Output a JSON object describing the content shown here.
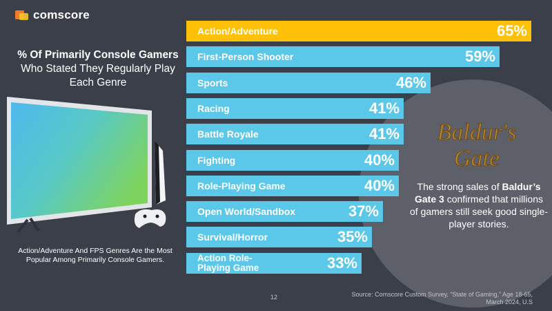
{
  "brand": {
    "name": "comscore"
  },
  "title": {
    "bold": "% Of Primarily Console Gamers",
    "rest": " Who Stated They Regularly Play Each Genre"
  },
  "footnote": "Action/Adventure And FPS Genres Are the Most Popular Among Primarily Console Gamers.",
  "callout": {
    "logo_line1": "Baldur's",
    "logo_line2": "Gate",
    "pre": "The strong sales of ",
    "bold": "Baldur’s Gate 3",
    "post": " confirmed that millions of gamers still seek good single-player stories."
  },
  "page_number": "12",
  "source": "Source: Comscore Custom Survey, “State of Gaming,” Age 18-65, March 2024, U.S",
  "colors": {
    "highlight": "#ffc107",
    "bar": "#5bc8ea",
    "background": "#3a3f4a"
  },
  "icons": [
    "tv-icon",
    "console-icon",
    "controller-icon",
    "baldurs-gate-logo"
  ],
  "chart_data": {
    "type": "bar",
    "orientation": "horizontal",
    "categories": [
      "Action/Adventure",
      "First-Person Shooter",
      "Sports",
      "Racing",
      "Battle Royale",
      "Fighting",
      "Role-Playing Game",
      "Open World/Sandbox",
      "Survival/Horror",
      "Action Role-Playing Game"
    ],
    "values": [
      65,
      59,
      46,
      41,
      41,
      40,
      40,
      37,
      35,
      33
    ],
    "value_labels": [
      "65%",
      "59%",
      "46%",
      "41%",
      "41%",
      "40%",
      "40%",
      "37%",
      "35%",
      "33%"
    ],
    "highlight_index": 0
  }
}
